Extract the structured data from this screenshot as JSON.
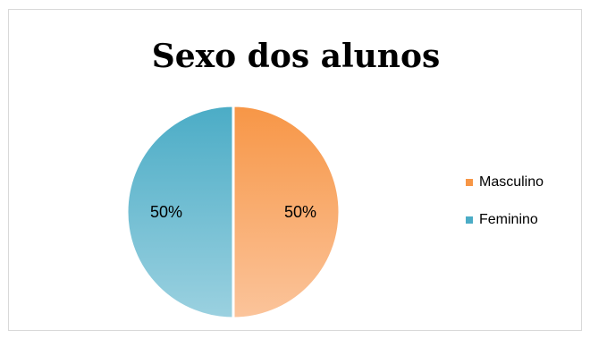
{
  "chart_data": {
    "type": "pie",
    "title": "Sexo dos alunos",
    "categories": [
      "Masculino",
      "Feminino"
    ],
    "values": [
      50,
      50
    ],
    "data_labels": [
      "50%",
      "50%"
    ],
    "colors": [
      "#f79646",
      "#4bacc6"
    ],
    "legend": "right"
  }
}
